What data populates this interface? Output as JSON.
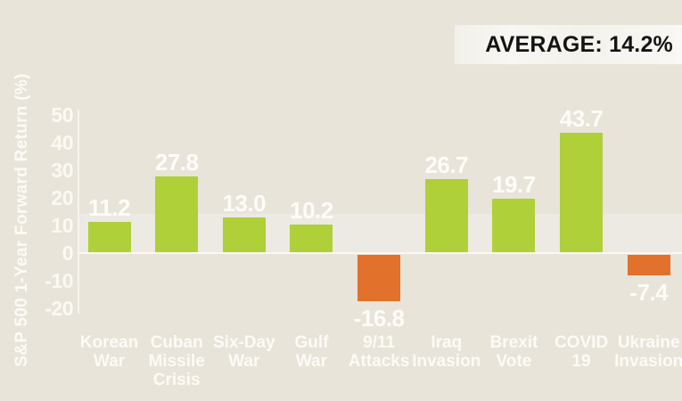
{
  "average_badge": {
    "label": "AVERAGE: 14.2%"
  },
  "chart_data": {
    "type": "bar",
    "title": "",
    "xlabel": "",
    "ylabel": "S&P 500 1-Year Forward Return (%)",
    "ylim": [
      -20,
      50
    ],
    "yticks": [
      50,
      40,
      30,
      20,
      10,
      0,
      -10,
      -20
    ],
    "grid": false,
    "legend_position": "none",
    "average": 14.2,
    "average_band": {
      "from": 0,
      "to": 14.2
    },
    "categories": [
      "Korean War",
      "Cuban Missile Crisis",
      "Six-Day War",
      "Gulf War",
      "9/11 Attacks",
      "Iraq Invasion",
      "Brexit Vote",
      "COVID 19",
      "Ukraine Invasion"
    ],
    "category_lines": [
      [
        "Korean",
        "War"
      ],
      [
        "Cuban",
        "Missile",
        "Crisis"
      ],
      [
        "Six-Day",
        "War"
      ],
      [
        "Gulf",
        "War"
      ],
      [
        "9/11",
        "Attacks"
      ],
      [
        "Iraq",
        "Invasion"
      ],
      [
        "Brexit",
        "Vote"
      ],
      [
        "COVID",
        "19"
      ],
      [
        "Ukraine",
        "Invasion"
      ]
    ],
    "values": [
      11.2,
      27.8,
      13.0,
      10.2,
      -16.8,
      26.7,
      19.7,
      43.7,
      -7.4
    ],
    "value_labels": [
      "11.2",
      "27.8",
      "13.0",
      "10.2",
      "-16.8",
      "26.7",
      "19.7",
      "43.7",
      "-7.4"
    ],
    "colors": {
      "positive": "#afd039",
      "negative": "#e2712b",
      "background": "#e8e4d9",
      "average_band": "#eceae3",
      "badge_background": "#f6f5f1",
      "text_light": "#fdfcf8",
      "text_dark": "#141414"
    }
  }
}
